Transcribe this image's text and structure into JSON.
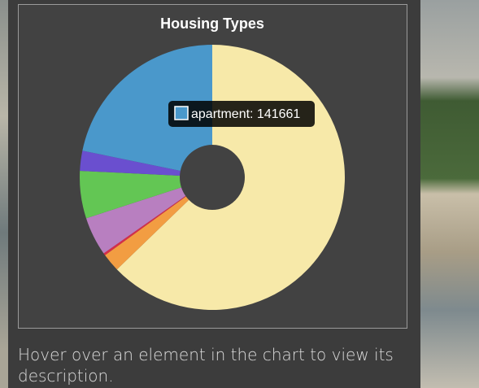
{
  "chart_data": {
    "type": "doughnut",
    "title": "Housing Types",
    "values": [
      408400,
      14500,
      1800,
      30700,
      37600,
      15900,
      141661
    ],
    "colors": [
      "#f7e9a9",
      "#f29d42",
      "#d62d4a",
      "#b87fc0",
      "#63c654",
      "#6a4fcf",
      "#4a98cb"
    ],
    "tooltip": {
      "text": "apartment: 141661",
      "color": "#4a98cb"
    }
  },
  "description": "Hover over an element in the chart to view its description."
}
